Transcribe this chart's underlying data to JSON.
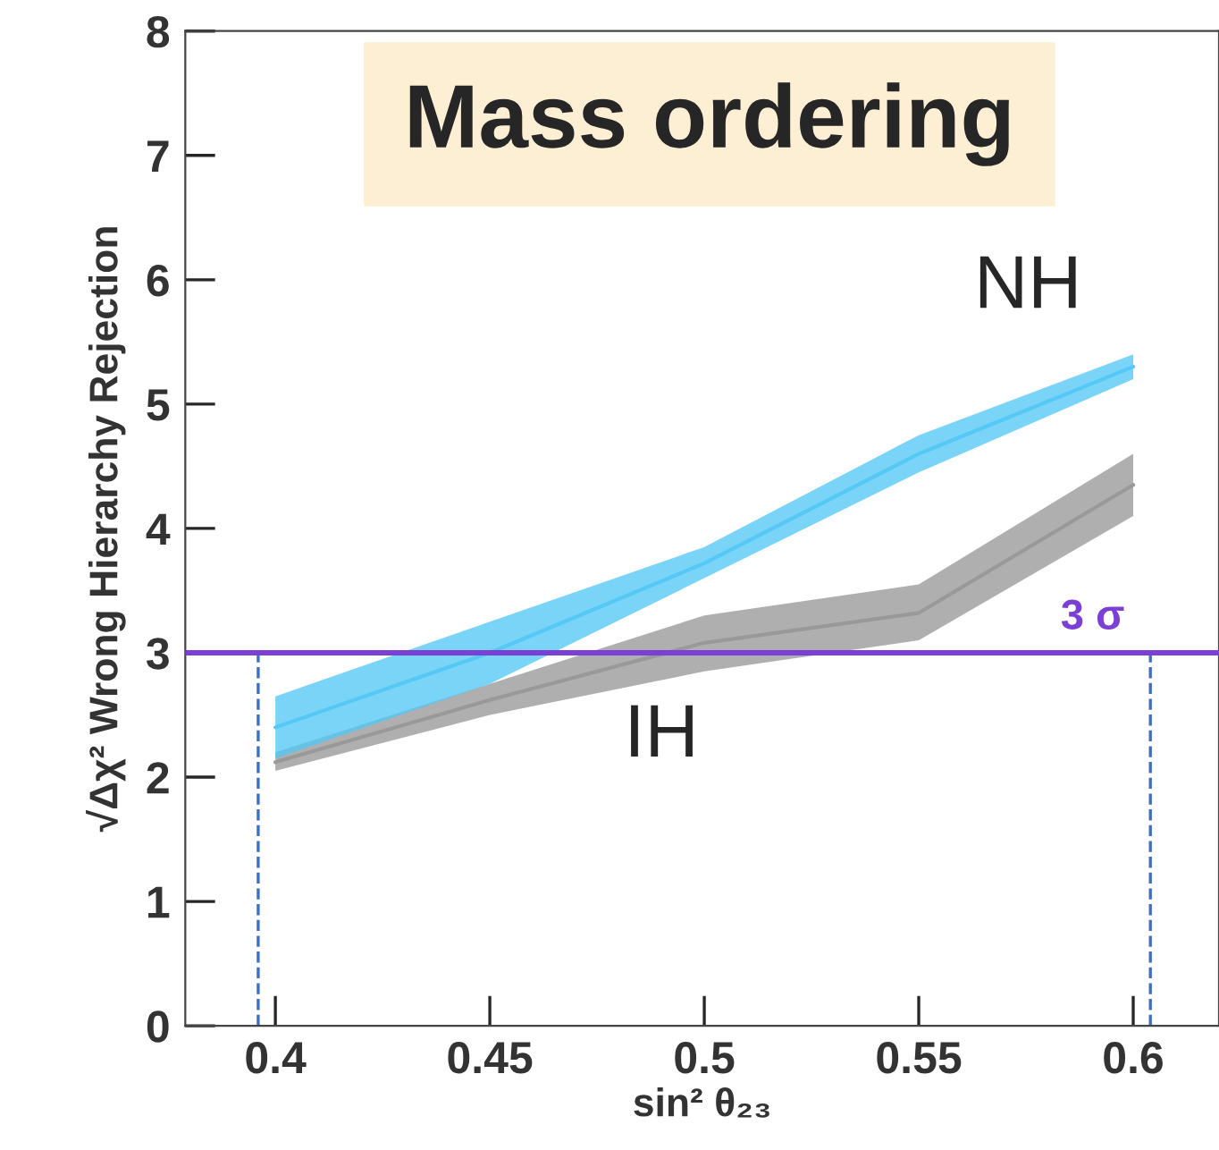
{
  "chart_data": {
    "type": "line",
    "title": "Mass ordering",
    "xlabel": "sin² θ₂₃",
    "ylabel": "√Δχ² Wrong Hierarchy Rejection",
    "x": [
      0.4,
      0.45,
      0.5,
      0.55,
      0.6
    ],
    "series": [
      {
        "name": "NH",
        "color": "#55c8f5",
        "values": [
          2.4,
          3.0,
          3.72,
          4.6,
          5.3
        ],
        "lower": [
          2.15,
          2.75,
          3.6,
          4.45,
          5.2
        ],
        "upper": [
          2.65,
          3.25,
          3.85,
          4.75,
          5.4
        ]
      },
      {
        "name": "IH",
        "color": "#999999",
        "values": [
          2.12,
          2.62,
          3.08,
          3.32,
          4.35
        ],
        "lower": [
          2.05,
          2.5,
          2.85,
          3.1,
          4.1
        ],
        "upper": [
          2.2,
          2.75,
          3.3,
          3.55,
          4.6
        ]
      }
    ],
    "ref_lines": [
      {
        "axis": "y",
        "value": 3,
        "label": "3 σ",
        "color": "#7b3fd6",
        "line_style": "solid"
      },
      {
        "axis": "x",
        "value": 0.396,
        "color": "#3b6fc4",
        "line_style": "dashed"
      },
      {
        "axis": "x",
        "value": 0.604,
        "color": "#3b6fc4",
        "line_style": "dashed"
      }
    ],
    "xlim": [
      0.379,
      0.62
    ],
    "ylim": [
      0,
      8
    ],
    "xticks": [
      0.4,
      0.45,
      0.5,
      0.55,
      0.6
    ],
    "yticks": [
      0,
      1,
      2,
      3,
      4,
      5,
      6,
      7,
      8
    ],
    "grid": false,
    "legend": false
  }
}
